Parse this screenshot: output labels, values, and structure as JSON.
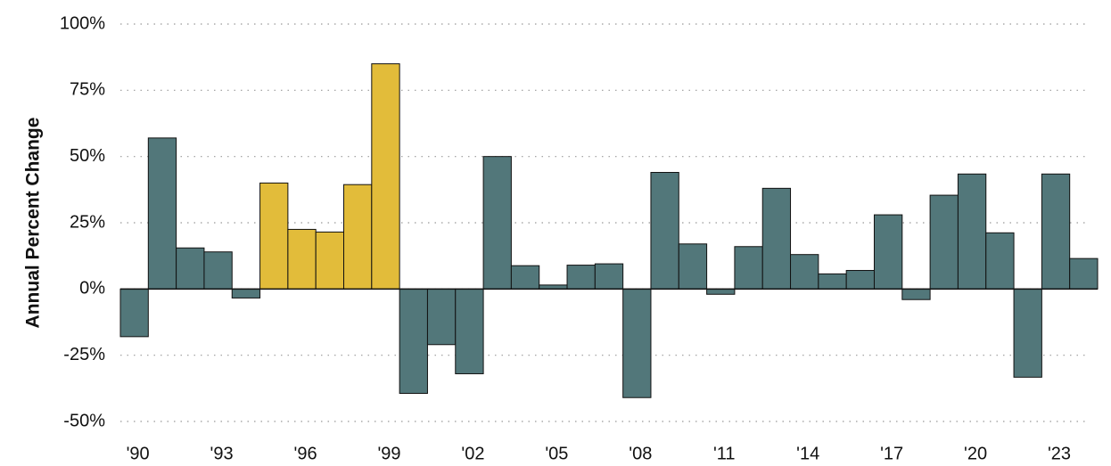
{
  "chart_data": {
    "type": "bar",
    "y_label": "Annual Percent Change",
    "categories": [
      "'90",
      null,
      null,
      "'93",
      null,
      null,
      "'96",
      null,
      null,
      "'99",
      null,
      null,
      "'02",
      null,
      null,
      "'05",
      null,
      null,
      "'08",
      null,
      null,
      "'11",
      null,
      null,
      "'14",
      null,
      null,
      "'17",
      null,
      null,
      "'20",
      null,
      null,
      "'23",
      null
    ],
    "values": [
      -18,
      57,
      15.5,
      14,
      -3.4,
      40,
      22.5,
      21.5,
      39.4,
      85,
      -39.4,
      -21,
      -32,
      50,
      8.8,
      1.5,
      9,
      9.5,
      -41,
      44,
      17,
      -2,
      16,
      38,
      13,
      5.7,
      7,
      28,
      -4,
      35.4,
      43.4,
      21.2,
      -33.3,
      43.4,
      11.5
    ],
    "colors": [
      "#52777a",
      "#52777a",
      "#52777a",
      "#52777a",
      "#52777a",
      "#e2bc3a",
      "#e2bc3a",
      "#e2bc3a",
      "#e2bc3a",
      "#e2bc3a",
      "#52777a",
      "#52777a",
      "#52777a",
      "#52777a",
      "#52777a",
      "#52777a",
      "#52777a",
      "#52777a",
      "#52777a",
      "#52777a",
      "#52777a",
      "#52777a",
      "#52777a",
      "#52777a",
      "#52777a",
      "#52777a",
      "#52777a",
      "#52777a",
      "#52777a",
      "#52777a",
      "#52777a",
      "#52777a",
      "#52777a",
      "#52777a",
      "#52777a"
    ],
    "ylim": [
      -50,
      100
    ],
    "yticks": [
      {
        "value": -50,
        "label": "-50%"
      },
      {
        "value": -25,
        "label": "-25%"
      },
      {
        "value": 0,
        "label": "0%"
      },
      {
        "value": 25,
        "label": "25%"
      },
      {
        "value": 50,
        "label": "50%"
      },
      {
        "value": 75,
        "label": "75%"
      },
      {
        "value": 100,
        "label": "100%"
      }
    ],
    "grid": true
  }
}
